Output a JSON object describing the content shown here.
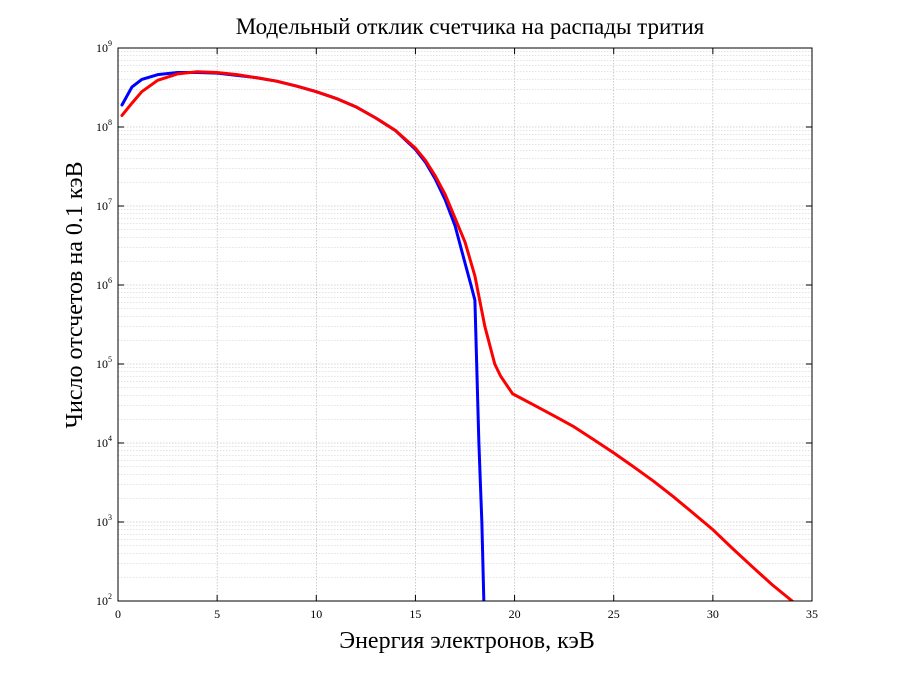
{
  "chart_data": {
    "type": "line",
    "title": "Модельный отклик счетчика на распады трития",
    "xlabel": "Энергия электронов, кэВ",
    "ylabel": "Число отсчетов на 0.1 кэВ",
    "xlim": [
      0,
      35
    ],
    "ylim": [
      100,
      1000000000
    ],
    "yscale": "log",
    "grid": true,
    "x_ticks": [
      0,
      5,
      10,
      15,
      20,
      25,
      30,
      35
    ],
    "x_tick_labels": [
      "0",
      "5",
      "10",
      "15",
      "20",
      "25",
      "30",
      "35"
    ],
    "y_ticks": [
      {
        "value": 100,
        "base": "10",
        "exp": "2"
      },
      {
        "value": 1000,
        "base": "10",
        "exp": "3"
      },
      {
        "value": 10000,
        "base": "10",
        "exp": "4"
      },
      {
        "value": 100000,
        "base": "10",
        "exp": "5"
      },
      {
        "value": 1000000,
        "base": "10",
        "exp": "6"
      },
      {
        "value": 10000000,
        "base": "10",
        "exp": "7"
      },
      {
        "value": 100000000,
        "base": "10",
        "exp": "8"
      },
      {
        "value": 1000000000,
        "base": "10",
        "exp": "9"
      }
    ],
    "series": [
      {
        "color": "#0000ff",
        "x": [
          0.2,
          0.7,
          1.2,
          2,
          3,
          4,
          5,
          6,
          7,
          8,
          9,
          10,
          11,
          12,
          13,
          14,
          15,
          15.5,
          16,
          16.5,
          17,
          17.5,
          17.8,
          18,
          18.2,
          18.35,
          18.45,
          18.5
        ],
        "y": [
          190000000,
          320000000,
          400000000,
          460000000,
          490000000,
          490000000,
          480000000,
          450000000,
          420000000,
          380000000,
          330000000,
          280000000,
          230000000,
          180000000,
          130000000,
          90000000,
          52000000,
          36000000,
          22000000,
          12000000,
          5600000,
          1900000,
          1000000,
          640000,
          10000,
          1000,
          100,
          60
        ]
      },
      {
        "color": "#ff0000",
        "x": [
          0.2,
          0.7,
          1.2,
          2,
          3,
          4,
          5,
          6,
          7,
          8,
          9,
          10,
          11,
          12,
          13,
          14,
          15,
          15.5,
          16,
          16.5,
          17,
          17.5,
          18,
          18.5,
          19,
          19.3,
          19.9,
          21,
          22,
          23,
          24,
          25,
          26,
          27,
          28,
          29,
          30,
          31,
          32,
          33,
          34,
          34.5
        ],
        "y": [
          140000000,
          200000000,
          280000000,
          390000000,
          470000000,
          500000000,
          490000000,
          460000000,
          420000000,
          380000000,
          330000000,
          280000000,
          230000000,
          180000000,
          130000000,
          90000000,
          54000000,
          38000000,
          24000000,
          14000000,
          7000000,
          3500000,
          1300000,
          300000,
          100000,
          70000,
          42000,
          30000,
          22000,
          16000,
          11000,
          7500,
          5000,
          3300,
          2100,
          1300,
          800,
          460,
          270,
          160,
          100,
          80
        ]
      }
    ]
  }
}
